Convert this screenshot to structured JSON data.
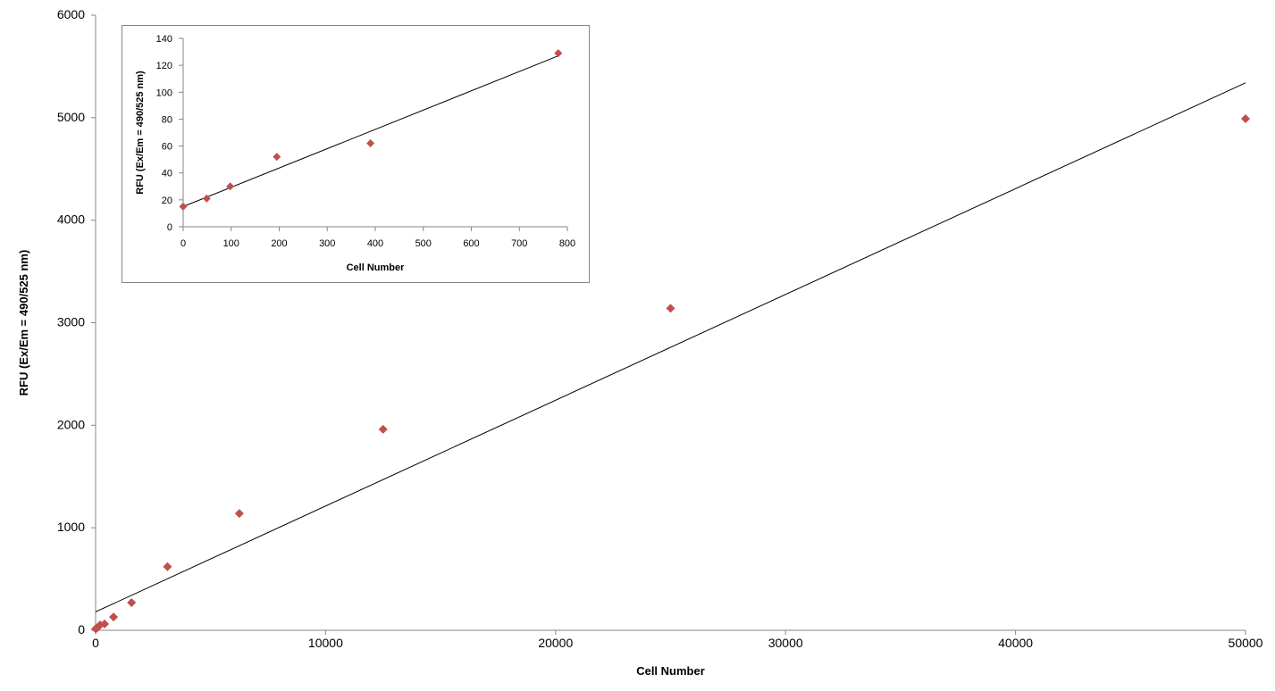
{
  "chart_data": [
    {
      "type": "scatter",
      "title": "",
      "xlabel": "Cell Number",
      "ylabel": "RFU (Ex/Em = 490/525 nm)",
      "xlim": [
        0,
        50000
      ],
      "ylim": [
        0,
        6000
      ],
      "xticks": [
        "0",
        "10000",
        "20000",
        "30000",
        "40000",
        "50000"
      ],
      "yticks": [
        "0",
        "1000",
        "2000",
        "3000",
        "4000",
        "5000",
        "6000"
      ],
      "grid": false,
      "series": [
        {
          "color": "#C0504D",
          "marker": "diamond",
          "points": [
            {
              "x": 0,
              "y": 14
            },
            {
              "x": 49,
              "y": 21
            },
            {
              "x": 98,
              "y": 31
            },
            {
              "x": 195,
              "y": 52
            },
            {
              "x": 390,
              "y": 62
            },
            {
              "x": 781,
              "y": 129
            },
            {
              "x": 1563,
              "y": 270
            },
            {
              "x": 3125,
              "y": 620
            },
            {
              "x": 6250,
              "y": 1140
            },
            {
              "x": 12500,
              "y": 1960
            },
            {
              "x": 25000,
              "y": 3140
            },
            {
              "x": 50000,
              "y": 4990
            }
          ]
        }
      ],
      "trendline": {
        "color": "#000000",
        "x": [
          0,
          50000
        ],
        "y": [
          180,
          5340
        ]
      }
    },
    {
      "type": "scatter",
      "title": "",
      "xlabel": "Cell  Number",
      "ylabel": "RFU (Ex/Em = 490/525 nm)",
      "xlim": [
        0,
        800
      ],
      "ylim": [
        0,
        140
      ],
      "xticks": [
        "0",
        "100",
        "200",
        "300",
        "400",
        "500",
        "600",
        "700",
        "800"
      ],
      "yticks": [
        "0",
        "20",
        "40",
        "60",
        "80",
        "100",
        "120",
        "140"
      ],
      "grid": false,
      "series": [
        {
          "color": "#C0504D",
          "marker": "diamond",
          "points": [
            {
              "x": 0,
              "y": 15
            },
            {
              "x": 49,
              "y": 21
            },
            {
              "x": 98,
              "y": 30
            },
            {
              "x": 195,
              "y": 52
            },
            {
              "x": 390,
              "y": 62
            },
            {
              "x": 781,
              "y": 129
            }
          ]
        }
      ],
      "trendline": {
        "color": "#000000",
        "x": [
          0,
          781
        ],
        "y": [
          15,
          127
        ]
      }
    }
  ]
}
